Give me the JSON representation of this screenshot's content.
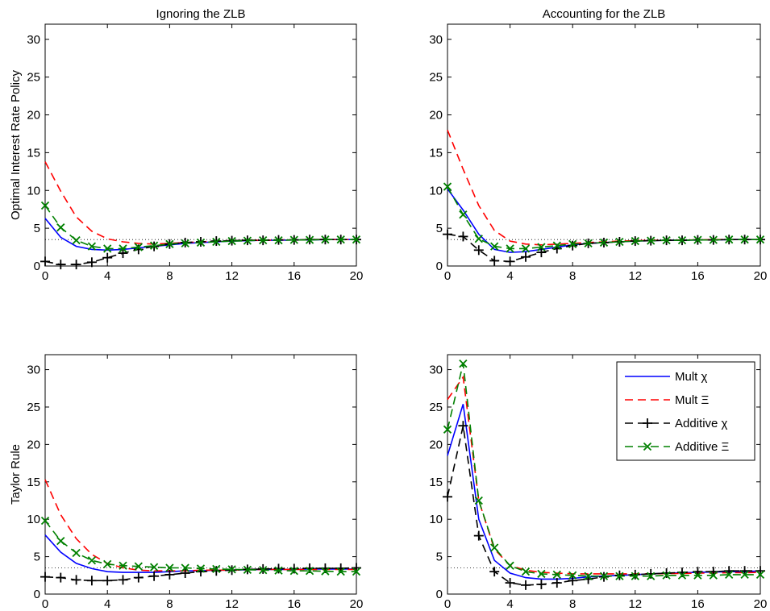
{
  "chart_data": [
    {
      "type": "line",
      "title": "Ignoring the ZLB",
      "ylabel": "Optimal Interest Rate Policy",
      "xlabel": "",
      "xlim": [
        0,
        20
      ],
      "ylim": [
        0,
        32
      ],
      "xticks": [
        0,
        4,
        8,
        12,
        16,
        20
      ],
      "yticks": [
        0,
        5,
        10,
        15,
        20,
        25,
        30
      ],
      "reference_line": 3.5,
      "x": [
        0,
        1,
        2,
        3,
        4,
        5,
        6,
        7,
        8,
        9,
        10,
        11,
        12,
        13,
        14,
        15,
        16,
        17,
        18,
        19,
        20
      ],
      "series": [
        {
          "name": "Mult χ",
          "color": "#0000ff",
          "dash": "solid",
          "marker": "none",
          "values": [
            6.3,
            3.8,
            2.6,
            2.2,
            2.1,
            2.2,
            2.4,
            2.6,
            2.8,
            3.0,
            3.1,
            3.2,
            3.3,
            3.35,
            3.4,
            3.4,
            3.45,
            3.45,
            3.5,
            3.5,
            3.5
          ]
        },
        {
          "name": "Mult Ξ",
          "color": "#ff0000",
          "dash": "dashed",
          "marker": "none",
          "values": [
            13.8,
            9.9,
            6.5,
            4.6,
            3.6,
            3.2,
            3.0,
            2.9,
            3.0,
            3.1,
            3.2,
            3.3,
            3.35,
            3.4,
            3.4,
            3.45,
            3.45,
            3.5,
            3.5,
            3.5,
            3.5
          ]
        },
        {
          "name": "Additive χ",
          "color": "#000000",
          "dash": "dashed",
          "marker": "plus",
          "values": [
            0.6,
            0.2,
            0.2,
            0.5,
            1.1,
            1.7,
            2.2,
            2.6,
            2.9,
            3.1,
            3.2,
            3.3,
            3.35,
            3.4,
            3.4,
            3.45,
            3.45,
            3.5,
            3.5,
            3.5,
            3.5
          ]
        },
        {
          "name": "Additive Ξ",
          "color": "#008000",
          "dash": "dashed",
          "marker": "x",
          "values": [
            8.0,
            5.1,
            3.4,
            2.6,
            2.3,
            2.3,
            2.5,
            2.7,
            2.9,
            3.0,
            3.1,
            3.2,
            3.3,
            3.35,
            3.4,
            3.4,
            3.45,
            3.45,
            3.5,
            3.5,
            3.5
          ]
        }
      ]
    },
    {
      "type": "line",
      "title": "Accounting for the ZLB",
      "ylabel": "",
      "xlabel": "",
      "xlim": [
        0,
        20
      ],
      "ylim": [
        0,
        32
      ],
      "xticks": [
        0,
        4,
        8,
        12,
        16,
        20
      ],
      "yticks": [
        0,
        5,
        10,
        15,
        20,
        25,
        30
      ],
      "reference_line": 3.5,
      "x": [
        0,
        1,
        2,
        3,
        4,
        5,
        6,
        7,
        8,
        9,
        10,
        11,
        12,
        13,
        14,
        15,
        16,
        17,
        18,
        19,
        20
      ],
      "series": [
        {
          "name": "Mult χ",
          "color": "#0000ff",
          "dash": "solid",
          "marker": "none",
          "values": [
            10.2,
            7.4,
            4.2,
            2.2,
            1.8,
            1.9,
            2.2,
            2.5,
            2.8,
            3.0,
            3.1,
            3.2,
            3.3,
            3.35,
            3.4,
            3.4,
            3.45,
            3.45,
            3.5,
            3.5,
            3.5
          ]
        },
        {
          "name": "Mult Ξ",
          "color": "#ff0000",
          "dash": "dashed",
          "marker": "none",
          "values": [
            18.0,
            12.8,
            8.0,
            4.7,
            3.3,
            2.9,
            2.8,
            2.9,
            3.0,
            3.1,
            3.2,
            3.3,
            3.35,
            3.4,
            3.4,
            3.45,
            3.45,
            3.5,
            3.5,
            3.5,
            3.5
          ]
        },
        {
          "name": "Additive χ",
          "color": "#000000",
          "dash": "dashed",
          "marker": "plus",
          "values": [
            4.2,
            3.9,
            2.1,
            0.7,
            0.6,
            1.2,
            1.8,
            2.3,
            2.7,
            3.0,
            3.1,
            3.2,
            3.3,
            3.35,
            3.4,
            3.4,
            3.45,
            3.45,
            3.5,
            3.5,
            3.5
          ]
        },
        {
          "name": "Additive Ξ",
          "color": "#008000",
          "dash": "dashed",
          "marker": "x",
          "values": [
            10.5,
            6.8,
            3.6,
            2.6,
            2.3,
            2.3,
            2.5,
            2.7,
            2.9,
            3.0,
            3.1,
            3.2,
            3.3,
            3.35,
            3.4,
            3.4,
            3.45,
            3.45,
            3.5,
            3.5,
            3.5
          ]
        }
      ]
    },
    {
      "type": "line",
      "title": "",
      "ylabel": "Taylor Rule",
      "xlabel": "",
      "xlim": [
        0,
        20
      ],
      "ylim": [
        0,
        32
      ],
      "xticks": [
        0,
        4,
        8,
        12,
        16,
        20
      ],
      "yticks": [
        0,
        5,
        10,
        15,
        20,
        25,
        30
      ],
      "reference_line": 3.5,
      "x": [
        0,
        1,
        2,
        3,
        4,
        5,
        6,
        7,
        8,
        9,
        10,
        11,
        12,
        13,
        14,
        15,
        16,
        17,
        18,
        19,
        20
      ],
      "series": [
        {
          "name": "Mult χ",
          "color": "#0000ff",
          "dash": "solid",
          "marker": "none",
          "values": [
            7.9,
            5.6,
            4.1,
            3.4,
            3.0,
            2.9,
            2.9,
            2.9,
            3.0,
            3.1,
            3.1,
            3.2,
            3.2,
            3.25,
            3.3,
            3.3,
            3.3,
            3.35,
            3.35,
            3.35,
            3.35
          ]
        },
        {
          "name": "Mult Ξ",
          "color": "#ff0000",
          "dash": "dashed",
          "marker": "none",
          "values": [
            15.3,
            10.6,
            7.4,
            5.3,
            4.1,
            3.5,
            3.2,
            3.1,
            3.1,
            3.1,
            3.2,
            3.2,
            3.2,
            3.25,
            3.3,
            3.3,
            3.3,
            3.3,
            3.3,
            3.3,
            3.3
          ]
        },
        {
          "name": "Additive χ",
          "color": "#000000",
          "dash": "dashed",
          "marker": "plus",
          "values": [
            2.3,
            2.2,
            1.9,
            1.8,
            1.8,
            1.9,
            2.2,
            2.4,
            2.6,
            2.8,
            3.0,
            3.1,
            3.2,
            3.3,
            3.35,
            3.4,
            3.4,
            3.45,
            3.45,
            3.45,
            3.5
          ]
        },
        {
          "name": "Additive Ξ",
          "color": "#008000",
          "dash": "dashed",
          "marker": "x",
          "values": [
            9.8,
            7.1,
            5.5,
            4.5,
            4.0,
            3.8,
            3.7,
            3.6,
            3.5,
            3.5,
            3.4,
            3.35,
            3.3,
            3.25,
            3.2,
            3.15,
            3.1,
            3.1,
            3.05,
            3.0,
            3.0
          ]
        }
      ]
    },
    {
      "type": "line",
      "title": "",
      "ylabel": "",
      "xlabel": "",
      "xlim": [
        0,
        20
      ],
      "ylim": [
        0,
        32
      ],
      "xticks": [
        0,
        4,
        8,
        12,
        16,
        20
      ],
      "yticks": [
        0,
        5,
        10,
        15,
        20,
        25,
        30
      ],
      "reference_line": 3.5,
      "legend": "top-right",
      "x": [
        0,
        1,
        2,
        3,
        4,
        5,
        6,
        7,
        8,
        9,
        10,
        11,
        12,
        13,
        14,
        15,
        16,
        17,
        18,
        19,
        20
      ],
      "series": [
        {
          "name": "Mult χ",
          "color": "#0000ff",
          "dash": "solid",
          "marker": "none",
          "values": [
            18.5,
            25.4,
            10.0,
            4.5,
            2.8,
            2.2,
            2.0,
            2.0,
            2.1,
            2.3,
            2.4,
            2.5,
            2.6,
            2.7,
            2.8,
            2.85,
            2.9,
            2.95,
            3.0,
            3.0,
            3.1
          ]
        },
        {
          "name": "Mult Ξ",
          "color": "#ff0000",
          "dash": "dashed",
          "marker": "none",
          "values": [
            26.0,
            29.0,
            12.5,
            6.0,
            3.8,
            3.2,
            2.9,
            2.8,
            2.7,
            2.7,
            2.7,
            2.7,
            2.7,
            2.7,
            2.75,
            2.75,
            2.8,
            2.8,
            2.85,
            2.85,
            2.9
          ]
        },
        {
          "name": "Additive χ",
          "color": "#000000",
          "dash": "dashed",
          "marker": "plus",
          "values": [
            13.0,
            22.5,
            7.8,
            3.0,
            1.5,
            1.2,
            1.3,
            1.5,
            1.8,
            2.0,
            2.3,
            2.5,
            2.6,
            2.7,
            2.8,
            2.9,
            3.0,
            3.0,
            3.1,
            3.1,
            3.1
          ]
        },
        {
          "name": "Additive Ξ",
          "color": "#008000",
          "dash": "dashed",
          "marker": "x",
          "values": [
            22.0,
            30.8,
            12.5,
            6.2,
            3.8,
            3.0,
            2.7,
            2.6,
            2.5,
            2.4,
            2.4,
            2.4,
            2.4,
            2.4,
            2.5,
            2.5,
            2.5,
            2.5,
            2.6,
            2.6,
            2.6
          ]
        }
      ]
    }
  ]
}
